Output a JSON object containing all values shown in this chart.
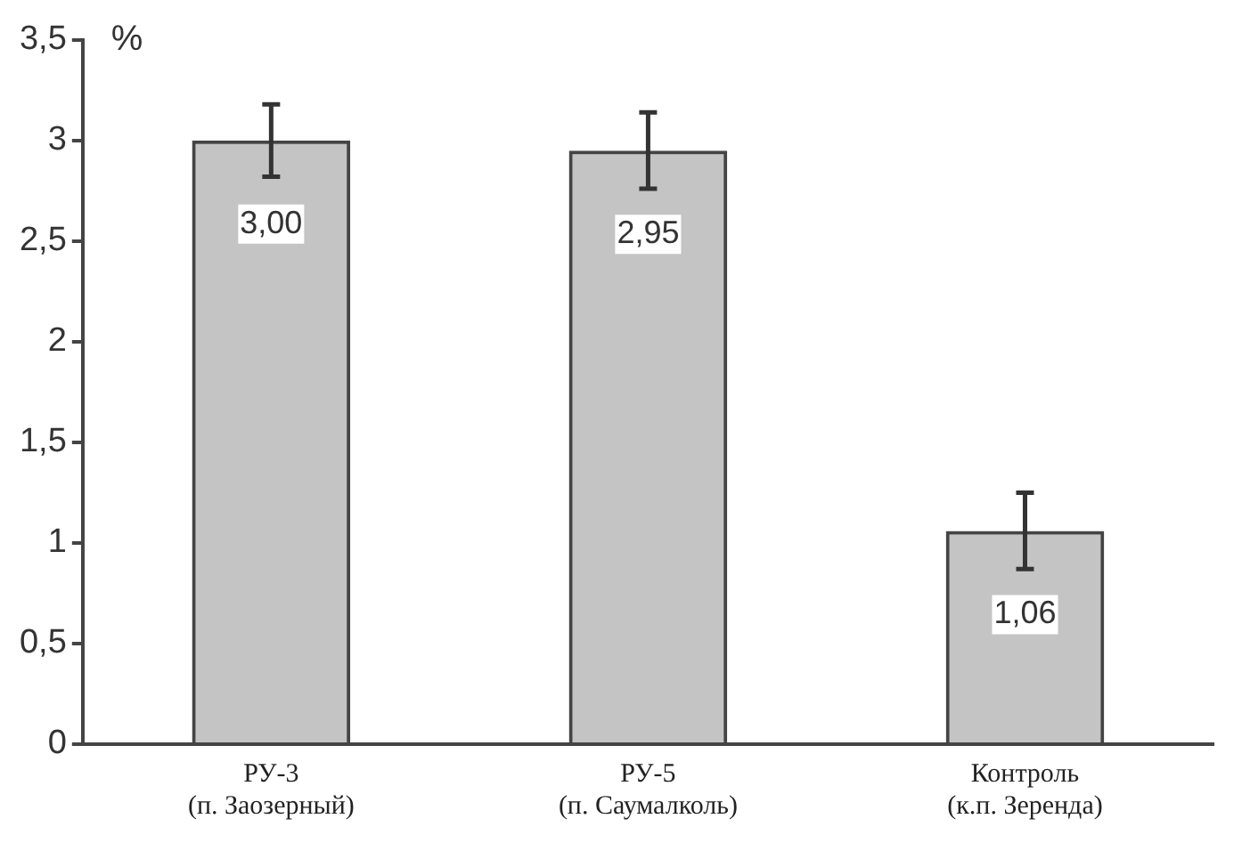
{
  "chart_data": {
    "type": "bar",
    "ylabel": "%",
    "categories": [
      "РУ-3\n(п. Заозерный)",
      "РУ-5\n(п. Саумалколь)",
      "Контроль\n(к.п. Зеренда)"
    ],
    "values": [
      3.0,
      2.95,
      1.06
    ],
    "errors": [
      0.18,
      0.19,
      0.19
    ],
    "value_labels": [
      "3,00",
      "2,95",
      "1,06"
    ],
    "color": "#444444",
    "ylim": [
      0,
      3.5
    ],
    "yticks": [
      0,
      {
        "value": 0.5,
        "label": "0,5"
      },
      1,
      {
        "value": 1.5,
        "label": "1,5"
      },
      2,
      {
        "value": 2.5,
        "label": "2,5"
      },
      3,
      {
        "value": 3.5,
        "label": "3,5"
      }
    ],
    "grid": false,
    "legend": false
  }
}
